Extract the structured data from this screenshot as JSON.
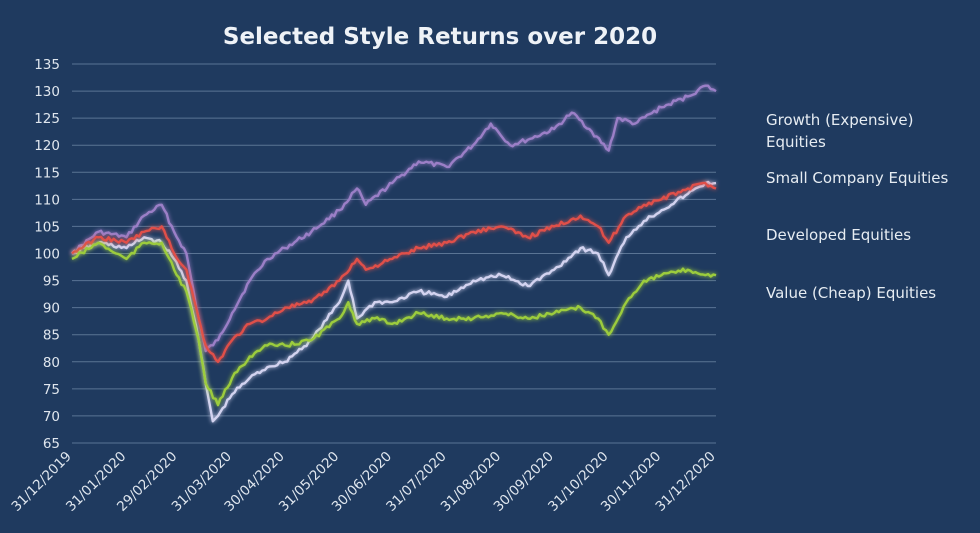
{
  "chart_data": {
    "type": "line",
    "title": "Selected Style Returns over 2020",
    "xlabel": "",
    "ylabel": "",
    "ylim": [
      65,
      135
    ],
    "yticks": [
      65,
      70,
      75,
      80,
      85,
      90,
      95,
      100,
      105,
      110,
      115,
      120,
      125,
      130,
      135
    ],
    "x_range": [
      "31/12/2019",
      "31/12/2020"
    ],
    "xticks": [
      "31/12/2019",
      "31/01/2020",
      "29/02/2020",
      "31/03/2020",
      "30/04/2020",
      "31/05/2020",
      "30/06/2020",
      "31/07/2020",
      "31/08/2020",
      "30/09/2020",
      "31/10/2020",
      "30/11/2020",
      "31/12/2020"
    ],
    "grid": true,
    "legend_position": "right",
    "series": [
      {
        "name": "Growth (Expensive) Equities",
        "color": "#9b7fc7",
        "points": [
          [
            "31/12/2019",
            100
          ],
          [
            "15/01/2020",
            104
          ],
          [
            "31/01/2020",
            103
          ],
          [
            "10/02/2020",
            107
          ],
          [
            "20/02/2020",
            109
          ],
          [
            "27/02/2020",
            104
          ],
          [
            "05/03/2020",
            100
          ],
          [
            "12/03/2020",
            88
          ],
          [
            "16/03/2020",
            82
          ],
          [
            "23/03/2020",
            84
          ],
          [
            "31/03/2020",
            89
          ],
          [
            "10/04/2020",
            95
          ],
          [
            "20/04/2020",
            99
          ],
          [
            "30/04/2020",
            101
          ],
          [
            "15/05/2020",
            104
          ],
          [
            "31/05/2020",
            108
          ],
          [
            "10/06/2020",
            112
          ],
          [
            "15/06/2020",
            109
          ],
          [
            "30/06/2020",
            113
          ],
          [
            "15/07/2020",
            117
          ],
          [
            "31/07/2020",
            116
          ],
          [
            "15/08/2020",
            120
          ],
          [
            "25/08/2020",
            124
          ],
          [
            "05/09/2020",
            120
          ],
          [
            "15/09/2020",
            121
          ],
          [
            "30/09/2020",
            123
          ],
          [
            "10/10/2020",
            126
          ],
          [
            "20/10/2020",
            123
          ],
          [
            "31/10/2020",
            119
          ],
          [
            "05/11/2020",
            125
          ],
          [
            "15/11/2020",
            124
          ],
          [
            "30/11/2020",
            127
          ],
          [
            "15/12/2020",
            129
          ],
          [
            "25/12/2020",
            131
          ],
          [
            "31/12/2020",
            130
          ]
        ]
      },
      {
        "name": "Small Company Equities",
        "color": "#d3d3f0",
        "points": [
          [
            "31/12/2019",
            100
          ],
          [
            "15/01/2020",
            102
          ],
          [
            "31/01/2020",
            101
          ],
          [
            "10/02/2020",
            103
          ],
          [
            "20/02/2020",
            102
          ],
          [
            "27/02/2020",
            99
          ],
          [
            "05/03/2020",
            95
          ],
          [
            "12/03/2020",
            84
          ],
          [
            "16/03/2020",
            76
          ],
          [
            "20/03/2020",
            69
          ],
          [
            "23/03/2020",
            70
          ],
          [
            "31/03/2020",
            74
          ],
          [
            "10/04/2020",
            77
          ],
          [
            "20/04/2020",
            79
          ],
          [
            "30/04/2020",
            80
          ],
          [
            "15/05/2020",
            84
          ],
          [
            "31/05/2020",
            91
          ],
          [
            "05/06/2020",
            95
          ],
          [
            "10/06/2020",
            88
          ],
          [
            "20/06/2020",
            91
          ],
          [
            "30/06/2020",
            91
          ],
          [
            "15/07/2020",
            93
          ],
          [
            "31/07/2020",
            92
          ],
          [
            "15/08/2020",
            95
          ],
          [
            "31/08/2020",
            96
          ],
          [
            "15/09/2020",
            94
          ],
          [
            "30/09/2020",
            97
          ],
          [
            "15/10/2020",
            101
          ],
          [
            "25/10/2020",
            100
          ],
          [
            "31/10/2020",
            96
          ],
          [
            "10/11/2020",
            103
          ],
          [
            "20/11/2020",
            106
          ],
          [
            "30/11/2020",
            108
          ],
          [
            "15/12/2020",
            111
          ],
          [
            "25/12/2020",
            113
          ],
          [
            "31/12/2020",
            113
          ]
        ]
      },
      {
        "name": "Developed Equities",
        "color": "#e0504a",
        "points": [
          [
            "31/12/2019",
            100
          ],
          [
            "15/01/2020",
            103
          ],
          [
            "31/01/2020",
            102
          ],
          [
            "10/02/2020",
            104
          ],
          [
            "20/02/2020",
            105
          ],
          [
            "27/02/2020",
            100
          ],
          [
            "05/03/2020",
            97
          ],
          [
            "12/03/2020",
            88
          ],
          [
            "16/03/2020",
            83
          ],
          [
            "23/03/2020",
            80
          ],
          [
            "31/03/2020",
            84
          ],
          [
            "10/04/2020",
            87
          ],
          [
            "20/04/2020",
            88
          ],
          [
            "30/04/2020",
            90
          ],
          [
            "15/05/2020",
            91
          ],
          [
            "31/05/2020",
            95
          ],
          [
            "10/06/2020",
            99
          ],
          [
            "15/06/2020",
            97
          ],
          [
            "30/06/2020",
            99
          ],
          [
            "15/07/2020",
            101
          ],
          [
            "31/07/2020",
            102
          ],
          [
            "15/08/2020",
            104
          ],
          [
            "31/08/2020",
            105
          ],
          [
            "15/09/2020",
            103
          ],
          [
            "30/09/2020",
            105
          ],
          [
            "15/10/2020",
            107
          ],
          [
            "25/10/2020",
            105
          ],
          [
            "31/10/2020",
            102
          ],
          [
            "10/11/2020",
            107
          ],
          [
            "20/11/2020",
            109
          ],
          [
            "30/11/2020",
            110
          ],
          [
            "15/12/2020",
            112
          ],
          [
            "25/12/2020",
            113
          ],
          [
            "31/12/2020",
            112
          ]
        ]
      },
      {
        "name": "Value (Cheap) Equities",
        "color": "#9ccc3c",
        "points": [
          [
            "31/12/2019",
            99
          ],
          [
            "15/01/2020",
            102
          ],
          [
            "25/01/2020",
            100
          ],
          [
            "31/01/2020",
            99
          ],
          [
            "10/02/2020",
            102
          ],
          [
            "20/02/2020",
            102
          ],
          [
            "27/02/2020",
            97
          ],
          [
            "05/03/2020",
            93
          ],
          [
            "12/03/2020",
            84
          ],
          [
            "16/03/2020",
            76
          ],
          [
            "23/03/2020",
            72
          ],
          [
            "31/03/2020",
            77
          ],
          [
            "10/04/2020",
            81
          ],
          [
            "20/04/2020",
            83
          ],
          [
            "30/04/2020",
            83
          ],
          [
            "15/05/2020",
            84
          ],
          [
            "31/05/2020",
            88
          ],
          [
            "05/06/2020",
            91
          ],
          [
            "10/06/2020",
            87
          ],
          [
            "20/06/2020",
            88
          ],
          [
            "30/06/2020",
            87
          ],
          [
            "15/07/2020",
            89
          ],
          [
            "31/07/2020",
            88
          ],
          [
            "15/08/2020",
            88
          ],
          [
            "31/08/2020",
            89
          ],
          [
            "15/09/2020",
            88
          ],
          [
            "30/09/2020",
            89
          ],
          [
            "15/10/2020",
            90
          ],
          [
            "25/10/2020",
            88
          ],
          [
            "31/10/2020",
            85
          ],
          [
            "10/11/2020",
            91
          ],
          [
            "20/11/2020",
            95
          ],
          [
            "30/11/2020",
            96
          ],
          [
            "15/12/2020",
            97
          ],
          [
            "25/12/2020",
            96
          ],
          [
            "31/12/2020",
            96
          ]
        ]
      }
    ]
  }
}
